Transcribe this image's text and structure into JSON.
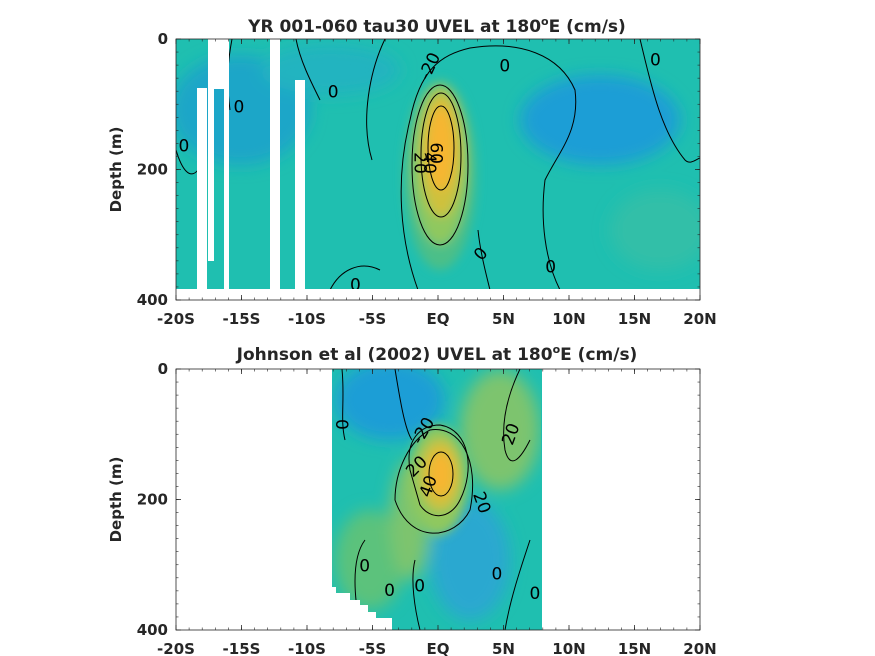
{
  "chart_data": [
    {
      "type": "heatmap",
      "title": "YR 001-060 tau30 UVEL at 180",
      "title_sup": "o",
      "title_suffix": "E (cm/s)",
      "xlabel": "",
      "ylabel": "Depth (m)",
      "x_ticks": [
        "-20S",
        "-15S",
        "-10S",
        "-5S",
        "EQ",
        "5N",
        "10N",
        "15N",
        "20N"
      ],
      "y_ticks": [
        "0",
        "200",
        "400"
      ],
      "xlim": [
        -20,
        20
      ],
      "ylim": [
        400,
        0
      ],
      "colors": {
        "background": "#1fbfb0",
        "west": "#1aa6c8",
        "core": "#f6b630",
        "mid": "#7dc46e",
        "east": "#1e9ed6"
      },
      "contour_labels": [
        {
          "text": "-20",
          "lat": -0.6,
          "depth": 42,
          "rot": -65
        },
        {
          "text": "0",
          "lat": 5.1,
          "depth": 42,
          "rot": 0
        },
        {
          "text": "0",
          "lat": 16.6,
          "depth": 33,
          "rot": 0
        },
        {
          "text": "0",
          "lat": -8.0,
          "depth": 82,
          "rot": 0
        },
        {
          "text": "0",
          "lat": -15.2,
          "depth": 105,
          "rot": 0
        },
        {
          "text": "0",
          "lat": -19.4,
          "depth": 165,
          "rot": 0
        },
        {
          "text": "60",
          "lat": -0.2,
          "depth": 175,
          "rot": 90
        },
        {
          "text": "40",
          "lat": -0.7,
          "depth": 190,
          "rot": 90
        },
        {
          "text": "20",
          "lat": -1.4,
          "depth": 190,
          "rot": 90
        },
        {
          "text": "0",
          "lat": 3.3,
          "depth": 330,
          "rot": -50
        },
        {
          "text": "0",
          "lat": 8.6,
          "depth": 350,
          "rot": 0
        },
        {
          "text": "0",
          "lat": -6.3,
          "depth": 378,
          "rot": 0
        }
      ]
    },
    {
      "type": "heatmap",
      "title": "Johnson et al (2002) UVEL at 180",
      "title_sup": "o",
      "title_suffix": "E (cm/s)",
      "xlabel": "",
      "ylabel": "Depth (m)",
      "x_ticks": [
        "-20S",
        "-15S",
        "-10S",
        "-5S",
        "EQ",
        "5N",
        "10N",
        "15N",
        "20N"
      ],
      "y_ticks": [
        "0",
        "200",
        "400"
      ],
      "xlim": [
        -20,
        20
      ],
      "ylim": [
        400,
        0
      ],
      "data_extent_lat": [
        -8,
        8
      ],
      "colors": {
        "background": "#1fbfb0",
        "west": "#1e9ed6",
        "core": "#f6b630",
        "mid": "#7dc46e",
        "east": "#7dc46e"
      },
      "contour_labels": [
        {
          "text": "0",
          "lat": -7.4,
          "depth": 85,
          "rot": 90
        },
        {
          "text": "-20",
          "lat": -1.1,
          "depth": 95,
          "rot": -60
        },
        {
          "text": "20",
          "lat": 5.6,
          "depth": 100,
          "rot": -70
        },
        {
          "text": "20",
          "lat": -1.6,
          "depth": 150,
          "rot": -45
        },
        {
          "text": "40",
          "lat": -0.7,
          "depth": 180,
          "rot": -70
        },
        {
          "text": "20",
          "lat": 3.3,
          "depth": 205,
          "rot": 70
        },
        {
          "text": "0",
          "lat": -5.6,
          "depth": 303,
          "rot": 0
        },
        {
          "text": "0",
          "lat": 4.5,
          "depth": 315,
          "rot": 0
        },
        {
          "text": "0",
          "lat": -1.4,
          "depth": 333,
          "rot": 0
        },
        {
          "text": "0",
          "lat": -3.7,
          "depth": 340,
          "rot": 0
        },
        {
          "text": "0",
          "lat": 7.4,
          "depth": 345,
          "rot": 0
        }
      ]
    }
  ]
}
